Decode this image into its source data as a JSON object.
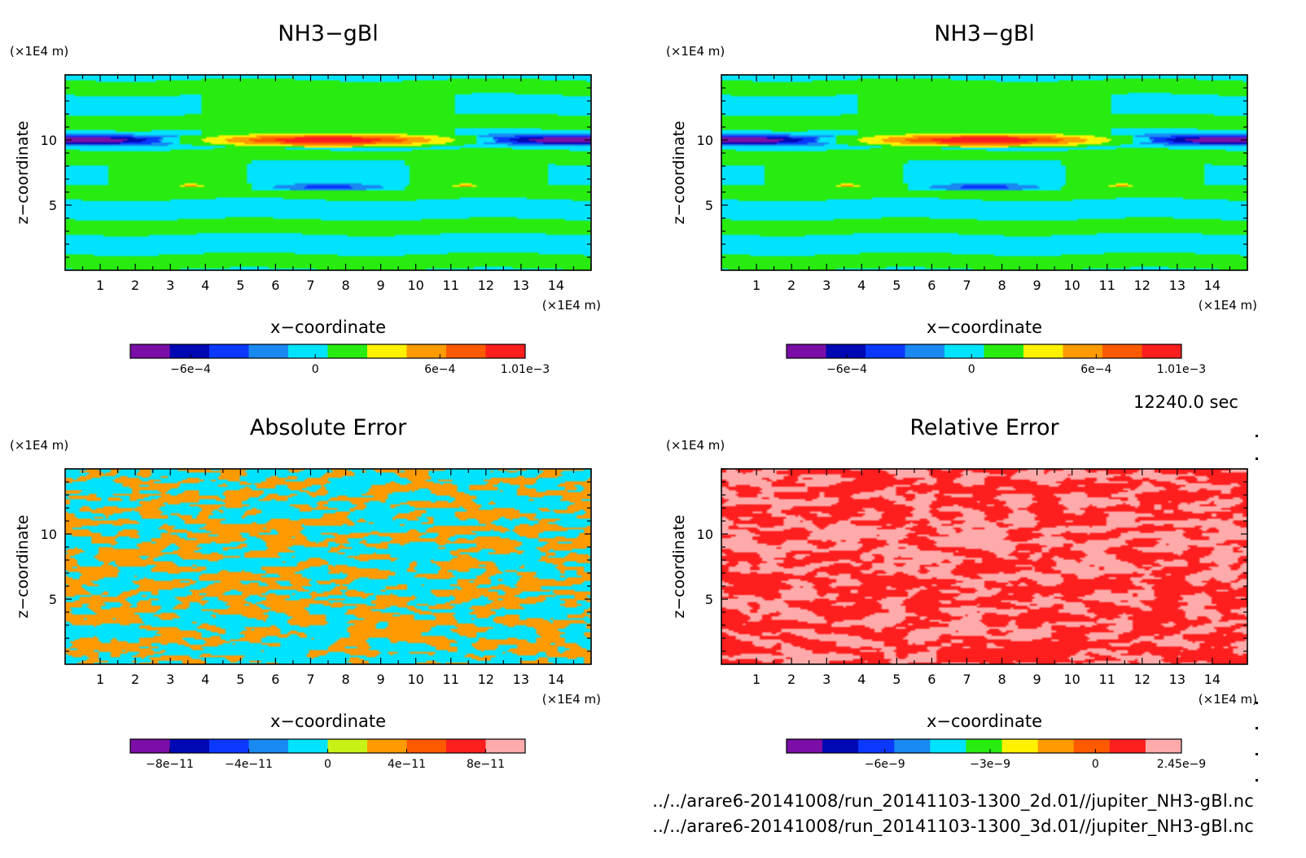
{
  "timestamp": "12240.0 sec",
  "footer": [
    "../../arare6-20141008/run_20141103-1300_2d.01//jupiter_NH3-gBl.nc",
    "../../arare6-20141008/run_20141103-1300_3d.01//jupiter_NH3-gBl.nc"
  ],
  "colors": {
    "purple": "#7a0ea6",
    "navy": "#0008b4",
    "blue": "#0a38ff",
    "sky": "#1989f2",
    "cyan": "#00e3ff",
    "green": "#28ec10",
    "lime": "#c8f216",
    "yellow": "#fff200",
    "orange": "#ff9a00",
    "redorange": "#ff5a00",
    "red": "#ff1e1e",
    "pink": "#ffaaaa"
  },
  "chart_data": [
    {
      "type": "heatmap",
      "title": "NH3−gBl",
      "xlabel": "x−coordinate",
      "ylabel": "z−coordinate",
      "xunit": "(×1E4 m)",
      "yunit": "(×1E4 m)",
      "xlim": [
        0,
        15
      ],
      "ylim": [
        0,
        15
      ],
      "xticks": [
        "1",
        "2",
        "3",
        "4",
        "5",
        "6",
        "7",
        "8",
        "9",
        "10",
        "11",
        "12",
        "13",
        "14"
      ],
      "yticks": [
        "5",
        "10"
      ],
      "colorbar": {
        "colors": [
          "#7a0ea6",
          "#0008b4",
          "#0a38ff",
          "#1989f2",
          "#00e3ff",
          "#28ec10",
          "#fff200",
          "#ff9a00",
          "#ff5a00",
          "#ff1e1e"
        ],
        "labels": [
          "−6e−4",
          "0",
          "6e−4",
          "1.01e−3"
        ],
        "label_values": [
          -0.0006,
          0,
          0.0006,
          0.00101
        ],
        "range": [
          -0.00089,
          0.00101
        ]
      }
    },
    {
      "type": "heatmap",
      "title": "NH3−gBl",
      "xlabel": "x−coordinate",
      "ylabel": "z−coordinate",
      "xunit": "(×1E4 m)",
      "yunit": "(×1E4 m)",
      "xlim": [
        0,
        15
      ],
      "ylim": [
        0,
        15
      ],
      "xticks": [
        "1",
        "2",
        "3",
        "4",
        "5",
        "6",
        "7",
        "8",
        "9",
        "10",
        "11",
        "12",
        "13",
        "14"
      ],
      "yticks": [
        "5",
        "10"
      ],
      "colorbar": {
        "colors": [
          "#7a0ea6",
          "#0008b4",
          "#0a38ff",
          "#1989f2",
          "#00e3ff",
          "#28ec10",
          "#fff200",
          "#ff9a00",
          "#ff5a00",
          "#ff1e1e"
        ],
        "labels": [
          "−6e−4",
          "0",
          "6e−4",
          "1.01e−3"
        ],
        "label_values": [
          -0.0006,
          0,
          0.0006,
          0.00101
        ],
        "range": [
          -0.00089,
          0.00101
        ]
      }
    },
    {
      "type": "heatmap",
      "title": "Absolute Error",
      "xlabel": "x−coordinate",
      "ylabel": "z−coordinate",
      "xunit": "(×1E4 m)",
      "yunit": "(×1E4 m)",
      "xlim": [
        0,
        15
      ],
      "ylim": [
        0,
        15
      ],
      "xticks": [
        "1",
        "2",
        "3",
        "4",
        "5",
        "6",
        "7",
        "8",
        "9",
        "10",
        "11",
        "12",
        "13",
        "14"
      ],
      "yticks": [
        "5",
        "10"
      ],
      "colorbar": {
        "colors": [
          "#7a0ea6",
          "#0008b4",
          "#0a38ff",
          "#1989f2",
          "#00e3ff",
          "#c8f216",
          "#ff9a00",
          "#ff5a00",
          "#ff1e1e",
          "#ffaaaa"
        ],
        "labels": [
          "−8e−11",
          "−4e−11",
          "0",
          "4e−11",
          "8e−11"
        ],
        "label_values": [
          -8e-11,
          -4e-11,
          0,
          4e-11,
          8e-11
        ],
        "range": [
          -1e-10,
          1e-10
        ]
      }
    },
    {
      "type": "heatmap",
      "title": "Relative Error",
      "xlabel": "x−coordinate",
      "ylabel": "z−coordinate",
      "xunit": "(×1E4 m)",
      "yunit": "(×1E4 m)",
      "xlim": [
        0,
        15
      ],
      "ylim": [
        0,
        15
      ],
      "xticks": [
        "1",
        "2",
        "3",
        "4",
        "5",
        "6",
        "7",
        "8",
        "9",
        "10",
        "11",
        "12",
        "13",
        "14"
      ],
      "yticks": [
        "5",
        "10"
      ],
      "colorbar": {
        "colors": [
          "#7a0ea6",
          "#0008b4",
          "#0a38ff",
          "#1989f2",
          "#00e3ff",
          "#28ec10",
          "#fff200",
          "#ff9a00",
          "#ff5a00",
          "#ff1e1e",
          "#ffaaaa"
        ],
        "labels": [
          "−6e−9",
          "−3e−9",
          "0",
          "2.45e−9"
        ],
        "label_values": [
          -6e-09,
          -3e-09,
          0,
          2.45e-09
        ],
        "range": [
          -8.8e-09,
          2.45e-09
        ]
      }
    }
  ]
}
